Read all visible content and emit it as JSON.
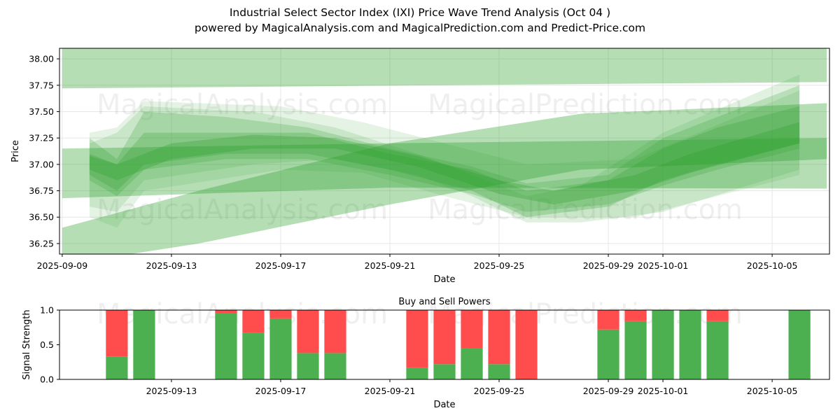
{
  "title_line1": "Industrial Select Sector Index (IXI) Price Wave Trend Analysis (Oct 04 )",
  "title_line2": "powered by MagicalAnalysis.com and MagicalPrediction.com and Predict-Price.com",
  "watermarks": [
    "MagicalAnalysis.com",
    "MagicalPrediction.com"
  ],
  "colors": {
    "band": "#2ca02c",
    "buy": "#4caf50",
    "sell": "#ff4d4d",
    "grid": "#e6e6e6"
  },
  "chart_data": [
    {
      "type": "area",
      "name": "price-wave",
      "xlabel": "Date",
      "ylabel": "Price",
      "ylim": [
        36.15,
        38.1
      ],
      "xlim": [
        "2025-09-09",
        "2025-10-07"
      ],
      "xticks": [
        "2025-09-09",
        "2025-09-13",
        "2025-09-17",
        "2025-09-21",
        "2025-09-25",
        "2025-09-29",
        "2025-10-01",
        "2025-10-05"
      ],
      "yticks": [
        "36.25",
        "36.50",
        "36.75",
        "37.00",
        "37.25",
        "37.50",
        "37.75",
        "38.00"
      ],
      "grid": true,
      "bands": [
        {
          "x": [
            "2025-09-09",
            "2025-10-07"
          ],
          "lower": [
            37.72,
            37.78
          ],
          "upper": [
            38.1,
            38.1
          ],
          "alpha": 0.35
        },
        {
          "x": [
            "2025-09-09",
            "2025-09-21",
            "2025-10-07"
          ],
          "lower": [
            36.68,
            36.78,
            36.77
          ],
          "upper": [
            37.15,
            37.2,
            37.25
          ],
          "alpha": 0.35
        },
        {
          "x": [
            "2025-09-09",
            "2025-09-14",
            "2025-09-21",
            "2025-09-28",
            "2025-10-07"
          ],
          "lower": [
            36.05,
            36.25,
            36.62,
            36.95,
            37.05
          ],
          "upper": [
            36.4,
            36.75,
            37.2,
            37.48,
            37.58
          ],
          "alpha": 0.35
        },
        {
          "x": [
            "2025-09-10",
            "2025-09-11",
            "2025-09-12",
            "2025-09-15",
            "2025-09-18",
            "2025-09-21",
            "2025-09-24",
            "2025-09-26",
            "2025-09-29",
            "2025-10-01",
            "2025-10-03",
            "2025-10-06"
          ],
          "lower": [
            36.85,
            36.7,
            36.95,
            37.05,
            37.05,
            36.9,
            36.72,
            36.55,
            36.62,
            36.8,
            36.95,
            37.15
          ],
          "upper": [
            37.25,
            37.05,
            37.5,
            37.45,
            37.35,
            37.15,
            36.98,
            36.82,
            36.9,
            37.25,
            37.45,
            37.75
          ],
          "alpha": 0.22
        },
        {
          "x": [
            "2025-09-10",
            "2025-09-11",
            "2025-09-12",
            "2025-09-15",
            "2025-09-18",
            "2025-09-21",
            "2025-09-24",
            "2025-09-26",
            "2025-09-29",
            "2025-10-01",
            "2025-10-03",
            "2025-10-06"
          ],
          "lower": [
            36.9,
            36.75,
            37.0,
            37.1,
            37.1,
            36.95,
            36.75,
            36.5,
            36.6,
            36.85,
            37.0,
            37.2
          ],
          "upper": [
            37.1,
            37.0,
            37.3,
            37.3,
            37.3,
            37.1,
            36.95,
            36.75,
            36.85,
            37.15,
            37.35,
            37.55
          ],
          "alpha": 0.25
        },
        {
          "x": [
            "2025-09-10",
            "2025-09-11",
            "2025-09-12",
            "2025-09-16",
            "2025-09-19",
            "2025-09-22",
            "2025-09-24",
            "2025-09-26",
            "2025-09-28",
            "2025-10-01",
            "2025-10-06"
          ],
          "lower": [
            36.6,
            36.55,
            36.85,
            37.0,
            37.05,
            36.9,
            36.7,
            36.45,
            36.45,
            36.55,
            36.95
          ],
          "upper": [
            37.2,
            37.3,
            37.55,
            37.5,
            37.35,
            37.1,
            36.9,
            36.7,
            36.8,
            37.3,
            37.85
          ],
          "alpha": 0.15
        },
        {
          "x": [
            "2025-09-10",
            "2025-09-11",
            "2025-09-13",
            "2025-09-16",
            "2025-09-19",
            "2025-09-22",
            "2025-09-25",
            "2025-09-27",
            "2025-09-30",
            "2025-10-02",
            "2025-10-06"
          ],
          "lower": [
            36.95,
            36.85,
            37.05,
            37.15,
            37.15,
            36.98,
            36.72,
            36.62,
            36.75,
            36.92,
            37.2
          ],
          "upper": [
            37.08,
            37.0,
            37.2,
            37.28,
            37.25,
            37.08,
            36.85,
            36.75,
            36.9,
            37.1,
            37.4
          ],
          "alpha": 0.3
        },
        {
          "x": [
            "2025-09-10",
            "2025-09-11",
            "2025-09-12",
            "2025-09-17",
            "2025-09-20",
            "2025-09-23",
            "2025-09-26",
            "2025-09-30",
            "2025-10-06"
          ],
          "lower": [
            36.5,
            36.4,
            36.75,
            36.95,
            36.92,
            36.7,
            36.5,
            36.5,
            36.9
          ],
          "upper": [
            37.3,
            37.35,
            37.6,
            37.55,
            37.4,
            37.2,
            37.0,
            37.05,
            37.7
          ],
          "alpha": 0.12
        }
      ]
    },
    {
      "type": "bar",
      "name": "buy-sell-powers",
      "title": "Buy and Sell Powers",
      "xlabel": "Date",
      "ylabel": "Signal Strength",
      "ylim": [
        0,
        1.0
      ],
      "xlim": [
        "2025-09-09",
        "2025-10-07"
      ],
      "xticks": [
        "2025-09-13",
        "2025-09-17",
        "2025-09-21",
        "2025-09-25",
        "2025-09-29",
        "2025-10-01",
        "2025-10-05"
      ],
      "yticks": [
        "0.0",
        "0.5",
        "1.0"
      ],
      "series": [
        {
          "name": "Buy",
          "dates": [
            "2025-09-11",
            "2025-09-12",
            "2025-09-15",
            "2025-09-16",
            "2025-09-17",
            "2025-09-18",
            "2025-09-19",
            "2025-09-22",
            "2025-09-23",
            "2025-09-24",
            "2025-09-25",
            "2025-09-26",
            "2025-09-29",
            "2025-09-30",
            "2025-10-01",
            "2025-10-02",
            "2025-10-03",
            "2025-10-06"
          ],
          "values": [
            0.33,
            1.0,
            0.95,
            0.67,
            0.88,
            0.38,
            0.38,
            0.17,
            0.22,
            0.45,
            0.22,
            0.0,
            0.72,
            0.84,
            1.0,
            1.0,
            0.84,
            1.0
          ]
        },
        {
          "name": "Sell",
          "dates": [
            "2025-09-11",
            "2025-09-12",
            "2025-09-15",
            "2025-09-16",
            "2025-09-17",
            "2025-09-18",
            "2025-09-19",
            "2025-09-22",
            "2025-09-23",
            "2025-09-24",
            "2025-09-25",
            "2025-09-26",
            "2025-09-29",
            "2025-09-30",
            "2025-10-01",
            "2025-10-02",
            "2025-10-03",
            "2025-10-06"
          ],
          "values": [
            0.67,
            0.0,
            0.05,
            0.33,
            0.12,
            0.62,
            0.62,
            0.83,
            0.78,
            0.55,
            0.78,
            1.0,
            0.28,
            0.16,
            0.0,
            0.0,
            0.16,
            0.0
          ]
        }
      ]
    }
  ]
}
